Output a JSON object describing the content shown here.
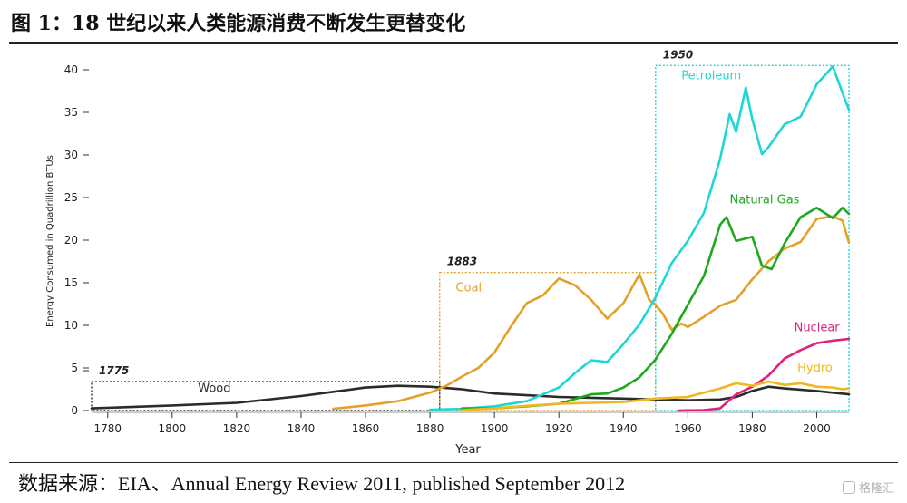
{
  "header": {
    "title": "图 1：18 世纪以来人类能源消费不断发生更替变化"
  },
  "footer": {
    "source": "数据来源：EIA、Annual Energy Review 2011, published September 2012",
    "watermark": "格隆汇"
  },
  "chart_data": {
    "type": "line",
    "xlabel": "Year",
    "ylabel": "Energy Consumed in Quadrillion BTUs",
    "xlim": [
      1775,
      2010
    ],
    "ylim": [
      0,
      40
    ],
    "x_ticks": [
      1780,
      1800,
      1820,
      1840,
      1860,
      1880,
      1900,
      1920,
      1940,
      1960,
      1980,
      2000
    ],
    "y_ticks": [
      0,
      5,
      10,
      15,
      20,
      25,
      30,
      35,
      40
    ],
    "grid": false,
    "series": [
      {
        "name": "Wood",
        "color": "#2b2b2b",
        "x": [
          1775,
          1800,
          1820,
          1840,
          1850,
          1860,
          1870,
          1880,
          1890,
          1900,
          1910,
          1920,
          1930,
          1940,
          1950,
          1960,
          1970,
          1975,
          1980,
          1985,
          1990,
          2000,
          2005,
          2010
        ],
        "y": [
          0.25,
          0.6,
          0.9,
          1.7,
          2.2,
          2.7,
          2.9,
          2.8,
          2.5,
          2.0,
          1.8,
          1.6,
          1.5,
          1.4,
          1.3,
          1.2,
          1.3,
          1.6,
          2.3,
          2.8,
          2.6,
          2.3,
          2.1,
          1.9
        ]
      },
      {
        "name": "Coal",
        "color": "#e3a12a",
        "x": [
          1850,
          1860,
          1870,
          1880,
          1885,
          1890,
          1895,
          1900,
          1905,
          1910,
          1915,
          1920,
          1925,
          1930,
          1935,
          1940,
          1945,
          1948,
          1950,
          1952,
          1955,
          1958,
          1960,
          1965,
          1970,
          1975,
          1980,
          1985,
          1990,
          1995,
          2000,
          2005,
          2008,
          2010
        ],
        "y": [
          0.2,
          0.6,
          1.1,
          2.1,
          2.9,
          4.0,
          5.0,
          6.8,
          9.8,
          12.6,
          13.5,
          15.5,
          14.7,
          13.0,
          10.8,
          12.6,
          16.0,
          13.0,
          12.4,
          11.5,
          9.5,
          10.2,
          9.8,
          11.0,
          12.3,
          13.0,
          15.4,
          17.5,
          19.0,
          19.8,
          22.5,
          22.8,
          22.3,
          19.7
        ]
      },
      {
        "name": "Petroleum",
        "color": "#1fd6d6",
        "x": [
          1880,
          1890,
          1900,
          1910,
          1920,
          1925,
          1930,
          1935,
          1940,
          1945,
          1950,
          1955,
          1960,
          1965,
          1970,
          1973,
          1975,
          1978,
          1980,
          1983,
          1985,
          1990,
          1995,
          2000,
          2005,
          2008,
          2010
        ],
        "y": [
          0.1,
          0.2,
          0.5,
          1.1,
          2.7,
          4.4,
          5.9,
          5.7,
          7.8,
          10.1,
          13.3,
          17.3,
          19.9,
          23.2,
          29.5,
          34.8,
          32.7,
          37.9,
          34.2,
          30.1,
          30.9,
          33.6,
          34.5,
          38.3,
          40.4,
          37.3,
          35.3
        ]
      },
      {
        "name": "Natural Gas",
        "color": "#1ea81e",
        "x": [
          1890,
          1900,
          1910,
          1920,
          1930,
          1935,
          1940,
          1945,
          1950,
          1955,
          1960,
          1965,
          1970,
          1972,
          1975,
          1980,
          1983,
          1986,
          1990,
          1995,
          2000,
          2005,
          2008,
          2010
        ],
        "y": [
          0.25,
          0.25,
          0.5,
          0.8,
          1.9,
          2.0,
          2.7,
          3.9,
          6.0,
          9.0,
          12.4,
          15.8,
          21.8,
          22.7,
          19.9,
          20.4,
          17.0,
          16.6,
          19.6,
          22.7,
          23.8,
          22.6,
          23.8,
          23.1
        ]
      },
      {
        "name": "Nuclear",
        "color": "#e0227a",
        "x": [
          1957,
          1965,
          1970,
          1975,
          1980,
          1985,
          1990,
          1995,
          2000,
          2005,
          2010
        ],
        "y": [
          0.0,
          0.05,
          0.25,
          1.9,
          2.8,
          4.1,
          6.1,
          7.1,
          7.9,
          8.2,
          8.4
        ]
      },
      {
        "name": "Hydro",
        "color": "#f2b720",
        "x": [
          1890,
          1900,
          1910,
          1920,
          1930,
          1940,
          1950,
          1960,
          1965,
          1970,
          1975,
          1980,
          1985,
          1990,
          1995,
          2000,
          2005,
          2008,
          2010
        ],
        "y": [
          0.05,
          0.25,
          0.55,
          0.8,
          0.9,
          1.0,
          1.4,
          1.6,
          2.1,
          2.6,
          3.2,
          2.9,
          3.4,
          3.0,
          3.2,
          2.8,
          2.7,
          2.5,
          2.6
        ]
      }
    ],
    "annotations": [
      {
        "label": "1775",
        "box": {
          "x0": 1775,
          "x1": 1883,
          "y0": 0,
          "y1": 3.4
        },
        "color": "#2b2b2b"
      },
      {
        "label": "1883",
        "box": {
          "x0": 1883,
          "x1": 1950,
          "y0": 0,
          "y1": 16.2
        },
        "color": "#e3a12a"
      },
      {
        "label": "1950",
        "box": {
          "x0": 1950,
          "x1": 2010,
          "y0": 0,
          "y1": 40.5
        },
        "color": "#1fd6d6"
      }
    ],
    "series_labels": [
      {
        "text": "Wood",
        "x": 1808,
        "y": 2.2,
        "color": "#2b2b2b"
      },
      {
        "text": "Coal",
        "x": 1888,
        "y": 14.0,
        "color": "#e3a12a"
      },
      {
        "text": "Petroleum",
        "x": 1958,
        "y": 38.9,
        "color": "#1fd6d6"
      },
      {
        "text": "Natural Gas",
        "x": 1973,
        "y": 24.3,
        "color": "#1ea81e"
      },
      {
        "text": "Nuclear",
        "x": 1993,
        "y": 9.3,
        "color": "#e0227a"
      },
      {
        "text": "Hydro",
        "x": 1994,
        "y": 4.6,
        "color": "#f2b720"
      }
    ]
  }
}
